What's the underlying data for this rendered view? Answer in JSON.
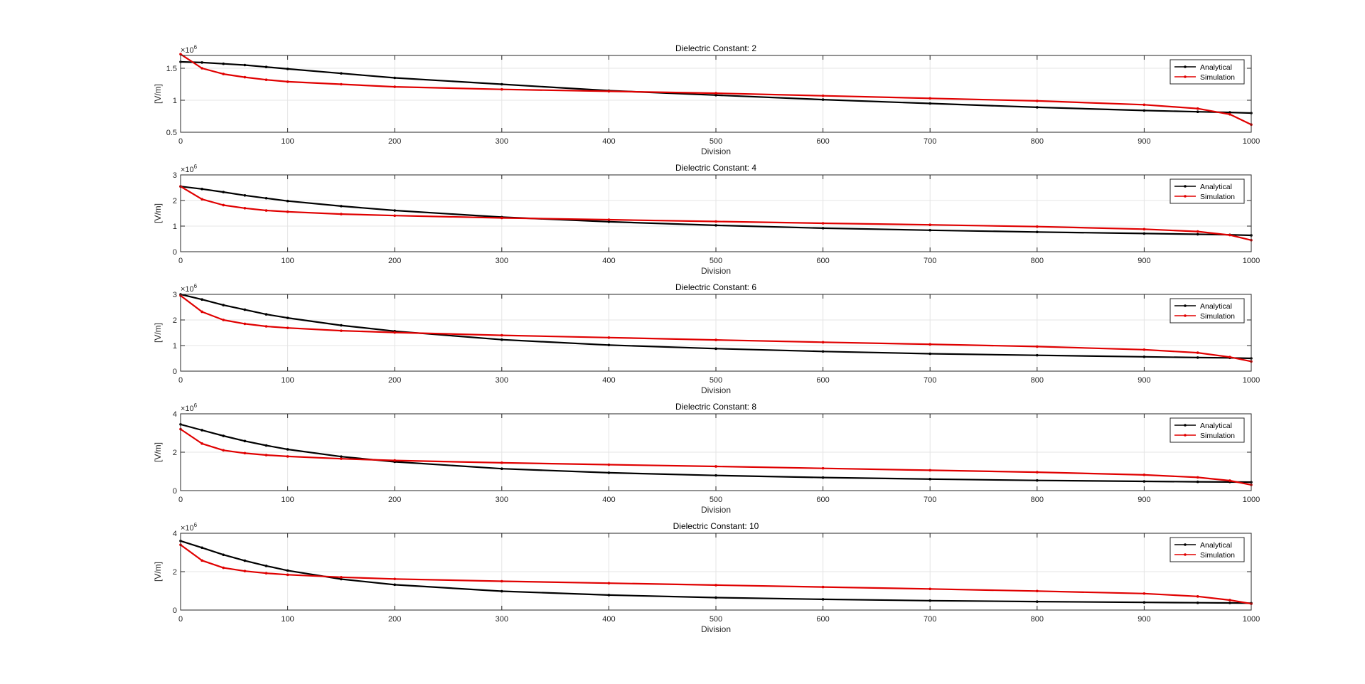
{
  "figure": {
    "background": "#ffffff",
    "series_colors": {
      "Analytical": "#000000",
      "Simulation": "#e00000"
    }
  },
  "chart_data": [
    {
      "type": "line",
      "title": "Dielectric Constant: 2",
      "xlabel": "Division",
      "ylabel": "[V/m]",
      "exponent_label": "×10",
      "exponent_power": "6",
      "xlim": [
        0,
        1000
      ],
      "ylim": [
        0.5,
        1.7
      ],
      "xticks": [
        "0",
        "100",
        "200",
        "300",
        "400",
        "500",
        "600",
        "700",
        "800",
        "900",
        "1000"
      ],
      "yticks": [
        {
          "value": 0.5,
          "label": "0.5"
        },
        {
          "value": 1.0,
          "label": "1"
        },
        {
          "value": 1.5,
          "label": "1.5"
        }
      ],
      "grid": true,
      "legend": "top-right",
      "x": [
        0,
        20,
        40,
        60,
        80,
        100,
        150,
        200,
        300,
        400,
        500,
        600,
        700,
        800,
        900,
        950,
        980,
        1000
      ],
      "series": [
        {
          "name": "Analytical",
          "color": "#000000",
          "values": [
            1.6,
            1.59,
            1.57,
            1.55,
            1.52,
            1.49,
            1.42,
            1.35,
            1.25,
            1.15,
            1.08,
            1.01,
            0.95,
            0.89,
            0.84,
            0.82,
            0.81,
            0.8
          ]
        },
        {
          "name": "Simulation",
          "color": "#e00000",
          "values": [
            1.72,
            1.5,
            1.41,
            1.36,
            1.32,
            1.29,
            1.25,
            1.21,
            1.17,
            1.14,
            1.11,
            1.07,
            1.03,
            0.99,
            0.93,
            0.87,
            0.78,
            0.62
          ]
        }
      ]
    },
    {
      "type": "line",
      "title": "Dielectric Constant: 4",
      "xlabel": "Division",
      "ylabel": "[V/m]",
      "exponent_label": "×10",
      "exponent_power": "6",
      "xlim": [
        0,
        1000
      ],
      "ylim": [
        0,
        3
      ],
      "xticks": [
        "0",
        "100",
        "200",
        "300",
        "400",
        "500",
        "600",
        "700",
        "800",
        "900",
        "1000"
      ],
      "yticks": [
        {
          "value": 0,
          "label": "0"
        },
        {
          "value": 1,
          "label": "1"
        },
        {
          "value": 2,
          "label": "2"
        },
        {
          "value": 3,
          "label": "3"
        }
      ],
      "grid": true,
      "legend": "top-right",
      "x": [
        0,
        20,
        40,
        60,
        80,
        100,
        150,
        200,
        300,
        400,
        500,
        600,
        700,
        800,
        900,
        950,
        980,
        1000
      ],
      "series": [
        {
          "name": "Analytical",
          "color": "#000000",
          "values": [
            2.55,
            2.45,
            2.33,
            2.2,
            2.09,
            1.98,
            1.78,
            1.61,
            1.35,
            1.17,
            1.03,
            0.92,
            0.84,
            0.77,
            0.71,
            0.68,
            0.66,
            0.64
          ]
        },
        {
          "name": "Simulation",
          "color": "#e00000",
          "values": [
            2.55,
            2.05,
            1.82,
            1.7,
            1.61,
            1.56,
            1.47,
            1.41,
            1.32,
            1.25,
            1.18,
            1.11,
            1.05,
            0.98,
            0.88,
            0.79,
            0.65,
            0.45
          ]
        }
      ]
    },
    {
      "type": "line",
      "title": "Dielectric Constant: 6",
      "xlabel": "Division",
      "ylabel": "[V/m]",
      "exponent_label": "×10",
      "exponent_power": "6",
      "xlim": [
        0,
        1000
      ],
      "ylim": [
        0,
        3
      ],
      "xticks": [
        "0",
        "100",
        "200",
        "300",
        "400",
        "500",
        "600",
        "700",
        "800",
        "900",
        "1000"
      ],
      "yticks": [
        {
          "value": 0,
          "label": "0"
        },
        {
          "value": 1,
          "label": "1"
        },
        {
          "value": 2,
          "label": "2"
        },
        {
          "value": 3,
          "label": "3"
        }
      ],
      "grid": true,
      "legend": "top-right",
      "x": [
        0,
        20,
        40,
        60,
        80,
        100,
        150,
        200,
        300,
        400,
        500,
        600,
        700,
        800,
        900,
        950,
        980,
        1000
      ],
      "series": [
        {
          "name": "Analytical",
          "color": "#000000",
          "values": [
            3.0,
            2.8,
            2.58,
            2.4,
            2.22,
            2.08,
            1.79,
            1.56,
            1.23,
            1.02,
            0.88,
            0.77,
            0.68,
            0.62,
            0.56,
            0.53,
            0.52,
            0.5
          ]
        },
        {
          "name": "Simulation",
          "color": "#e00000",
          "values": [
            2.95,
            2.32,
            2.0,
            1.85,
            1.75,
            1.69,
            1.58,
            1.51,
            1.4,
            1.31,
            1.22,
            1.13,
            1.05,
            0.96,
            0.84,
            0.72,
            0.55,
            0.38
          ]
        }
      ]
    },
    {
      "type": "line",
      "title": "Dielectric Constant: 8",
      "xlabel": "Division",
      "ylabel": "[V/m]",
      "exponent_label": "×10",
      "exponent_power": "6",
      "xlim": [
        0,
        1000
      ],
      "ylim": [
        0,
        4
      ],
      "xticks": [
        "0",
        "100",
        "200",
        "300",
        "400",
        "500",
        "600",
        "700",
        "800",
        "900",
        "1000"
      ],
      "yticks": [
        {
          "value": 0,
          "label": "0"
        },
        {
          "value": 2,
          "label": "2"
        },
        {
          "value": 4,
          "label": "4"
        }
      ],
      "grid": true,
      "legend": "top-right",
      "x": [
        0,
        20,
        40,
        60,
        80,
        100,
        150,
        200,
        300,
        400,
        500,
        600,
        700,
        800,
        900,
        950,
        980,
        1000
      ],
      "series": [
        {
          "name": "Analytical",
          "color": "#000000",
          "values": [
            3.45,
            3.15,
            2.85,
            2.58,
            2.35,
            2.15,
            1.77,
            1.5,
            1.14,
            0.93,
            0.79,
            0.68,
            0.6,
            0.53,
            0.48,
            0.46,
            0.45,
            0.44
          ]
        },
        {
          "name": "Simulation",
          "color": "#e00000",
          "values": [
            3.2,
            2.45,
            2.1,
            1.95,
            1.85,
            1.78,
            1.66,
            1.57,
            1.45,
            1.35,
            1.26,
            1.16,
            1.06,
            0.96,
            0.82,
            0.69,
            0.52,
            0.3
          ]
        }
      ]
    },
    {
      "type": "line",
      "title": "Dielectric Constant: 10",
      "xlabel": "Division",
      "ylabel": "[V/m]",
      "exponent_label": "×10",
      "exponent_power": "6",
      "xlim": [
        0,
        1000
      ],
      "ylim": [
        0,
        4
      ],
      "xticks": [
        "0",
        "100",
        "200",
        "300",
        "400",
        "500",
        "600",
        "700",
        "800",
        "900",
        "1000"
      ],
      "yticks": [
        {
          "value": 0,
          "label": "0"
        },
        {
          "value": 2,
          "label": "2"
        },
        {
          "value": 4,
          "label": "4"
        }
      ],
      "grid": true,
      "legend": "top-right",
      "x": [
        0,
        20,
        40,
        60,
        80,
        100,
        150,
        200,
        300,
        400,
        500,
        600,
        700,
        800,
        900,
        950,
        980,
        1000
      ],
      "series": [
        {
          "name": "Analytical",
          "color": "#000000",
          "values": [
            3.6,
            3.25,
            2.88,
            2.57,
            2.3,
            2.06,
            1.61,
            1.32,
            0.98,
            0.78,
            0.65,
            0.56,
            0.49,
            0.44,
            0.4,
            0.38,
            0.37,
            0.36
          ]
        },
        {
          "name": "Simulation",
          "color": "#e00000",
          "values": [
            3.4,
            2.58,
            2.2,
            2.03,
            1.92,
            1.84,
            1.71,
            1.62,
            1.5,
            1.4,
            1.3,
            1.2,
            1.1,
            0.99,
            0.86,
            0.71,
            0.52,
            0.33
          ]
        }
      ]
    }
  ]
}
